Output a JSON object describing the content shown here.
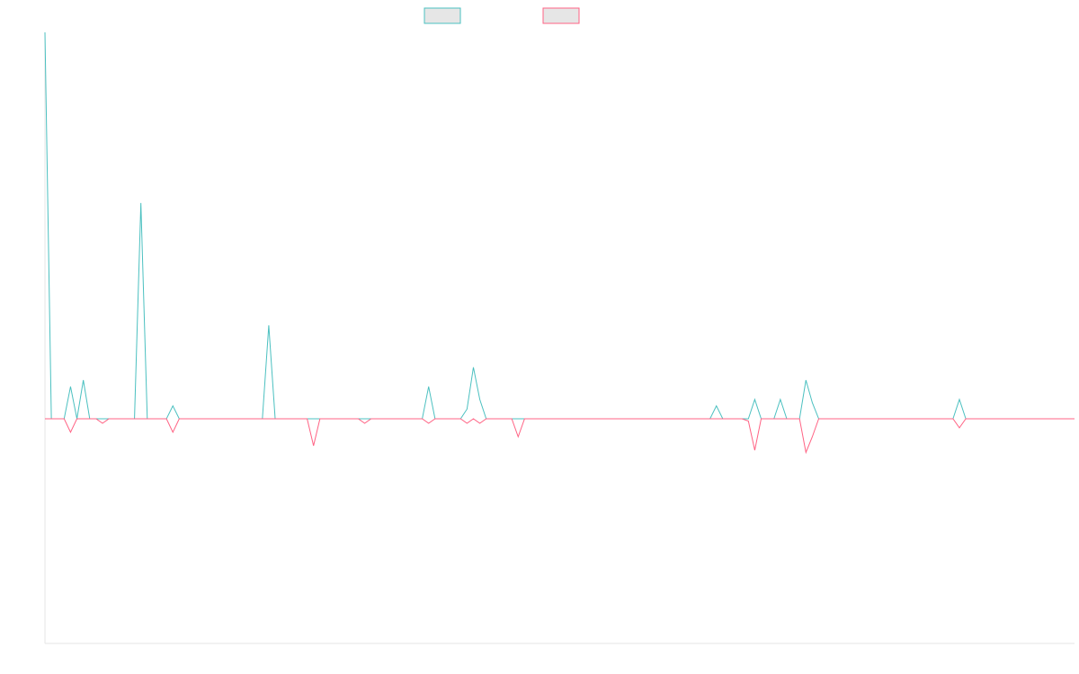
{
  "chart_data": {
    "type": "line",
    "title": "",
    "xlabel": "",
    "ylabel": "",
    "grid": false,
    "legend": {
      "placement": "top-center",
      "entries": [
        {
          "label": "",
          "color": "#4bc0c0",
          "fill": "#e6e6e6"
        },
        {
          "label": "",
          "color": "#ff6384",
          "fill": "#e6e6e6"
        }
      ]
    },
    "x_count": 162,
    "ylim": [
      -1,
      1.2
    ],
    "series": [
      {
        "color": "#4bc0c0",
        "points": [
          [
            0,
            1.2
          ],
          [
            1,
            0
          ],
          [
            3,
            0
          ],
          [
            4,
            0.1
          ],
          [
            5,
            0
          ],
          [
            6,
            0.12
          ],
          [
            7,
            0
          ],
          [
            9,
            0
          ],
          [
            10,
            0
          ],
          [
            11,
            0
          ],
          [
            12,
            0
          ],
          [
            13,
            0
          ],
          [
            14,
            0
          ],
          [
            15,
            0.67
          ],
          [
            16,
            0
          ],
          [
            17,
            0
          ],
          [
            18,
            0
          ],
          [
            19,
            0
          ],
          [
            20,
            0.04
          ],
          [
            21,
            0
          ],
          [
            22,
            0
          ],
          [
            23,
            0
          ],
          [
            24,
            0
          ],
          [
            25,
            0
          ],
          [
            26,
            0
          ],
          [
            27,
            0
          ],
          [
            28,
            0
          ],
          [
            29,
            0
          ],
          [
            30,
            0
          ],
          [
            31,
            0
          ],
          [
            32,
            0
          ],
          [
            33,
            0
          ],
          [
            34,
            0
          ],
          [
            35,
            0.29
          ],
          [
            36,
            0
          ],
          [
            37,
            0
          ],
          [
            38,
            0
          ],
          [
            39,
            0
          ],
          [
            40,
            0
          ],
          [
            41,
            0
          ],
          [
            42,
            0
          ],
          [
            43,
            0
          ],
          [
            44,
            0
          ],
          [
            45,
            0
          ],
          [
            46,
            0
          ],
          [
            47,
            0
          ],
          [
            48,
            0
          ],
          [
            49,
            0
          ],
          [
            50,
            0
          ],
          [
            51,
            0
          ],
          [
            52,
            0
          ],
          [
            53,
            0
          ],
          [
            54,
            0
          ],
          [
            55,
            0
          ],
          [
            56,
            0
          ],
          [
            57,
            0
          ],
          [
            58,
            0
          ],
          [
            59,
            0
          ],
          [
            60,
            0.1
          ],
          [
            61,
            0
          ],
          [
            62,
            0
          ],
          [
            63,
            0
          ],
          [
            64,
            0
          ],
          [
            65,
            0
          ],
          [
            66,
            0.03
          ],
          [
            67,
            0.16
          ],
          [
            68,
            0.06
          ],
          [
            69,
            0
          ],
          [
            70,
            0
          ],
          [
            71,
            0
          ],
          [
            72,
            0
          ],
          [
            73,
            0
          ],
          [
            74,
            0
          ],
          [
            75,
            0
          ],
          [
            76,
            0
          ],
          [
            77,
            0
          ],
          [
            78,
            0
          ],
          [
            79,
            0
          ],
          [
            80,
            0
          ],
          [
            81,
            0
          ],
          [
            82,
            0
          ],
          [
            83,
            0
          ],
          [
            84,
            0
          ],
          [
            85,
            0
          ],
          [
            86,
            0
          ],
          [
            87,
            0
          ],
          [
            88,
            0
          ],
          [
            89,
            0
          ],
          [
            90,
            0
          ],
          [
            91,
            0
          ],
          [
            92,
            0
          ],
          [
            93,
            0
          ],
          [
            94,
            0
          ],
          [
            95,
            0
          ],
          [
            96,
            0
          ],
          [
            97,
            0
          ],
          [
            98,
            0
          ],
          [
            99,
            0
          ],
          [
            100,
            0
          ],
          [
            101,
            0
          ],
          [
            102,
            0
          ],
          [
            103,
            0
          ],
          [
            104,
            0
          ],
          [
            105,
            0.04
          ],
          [
            106,
            0
          ],
          [
            107,
            0
          ],
          [
            108,
            0
          ],
          [
            109,
            0
          ],
          [
            110,
            0
          ],
          [
            111,
            0.06
          ],
          [
            112,
            0
          ],
          [
            113,
            0
          ],
          [
            114,
            0
          ],
          [
            115,
            0.06
          ],
          [
            116,
            0
          ],
          [
            117,
            0
          ],
          [
            118,
            0
          ],
          [
            119,
            0.12
          ],
          [
            120,
            0.05
          ],
          [
            121,
            0
          ],
          [
            122,
            0
          ],
          [
            123,
            0
          ],
          [
            124,
            0
          ],
          [
            125,
            0
          ],
          [
            126,
            0
          ],
          [
            127,
            0
          ],
          [
            128,
            0
          ],
          [
            129,
            0
          ],
          [
            130,
            0
          ],
          [
            131,
            0
          ],
          [
            132,
            0
          ],
          [
            133,
            0
          ],
          [
            134,
            0
          ],
          [
            135,
            0
          ],
          [
            136,
            0
          ],
          [
            137,
            0
          ],
          [
            138,
            0
          ],
          [
            139,
            0
          ],
          [
            140,
            0
          ],
          [
            141,
            0
          ],
          [
            142,
            0
          ],
          [
            143,
            0.06
          ],
          [
            144,
            0
          ],
          [
            145,
            0
          ],
          [
            146,
            0
          ],
          [
            147,
            0
          ],
          [
            148,
            0
          ],
          [
            149,
            0
          ],
          [
            150,
            0
          ],
          [
            151,
            0
          ],
          [
            152,
            0
          ],
          [
            153,
            0
          ],
          [
            154,
            0
          ],
          [
            155,
            0
          ],
          [
            156,
            0
          ],
          [
            157,
            0
          ],
          [
            158,
            0
          ],
          [
            159,
            0
          ],
          [
            160,
            0
          ],
          [
            161,
            0
          ]
        ]
      },
      {
        "color": "#ff6384",
        "points": [
          [
            0,
            0
          ],
          [
            1,
            0
          ],
          [
            2,
            0
          ],
          [
            3,
            0
          ],
          [
            4,
            -0.06
          ],
          [
            5,
            0
          ],
          [
            6,
            0
          ],
          [
            7,
            0
          ],
          [
            8,
            0
          ],
          [
            9,
            -0.02
          ],
          [
            10,
            0
          ],
          [
            11,
            0
          ],
          [
            12,
            0
          ],
          [
            13,
            0
          ],
          [
            14,
            0
          ],
          [
            15,
            0
          ],
          [
            16,
            0
          ],
          [
            17,
            0
          ],
          [
            18,
            0
          ],
          [
            19,
            0
          ],
          [
            20,
            -0.06
          ],
          [
            21,
            0
          ],
          [
            22,
            0
          ],
          [
            23,
            0
          ],
          [
            24,
            0
          ],
          [
            25,
            0
          ],
          [
            26,
            0
          ],
          [
            27,
            0
          ],
          [
            28,
            0
          ],
          [
            29,
            0
          ],
          [
            30,
            0
          ],
          [
            31,
            0
          ],
          [
            32,
            0
          ],
          [
            33,
            0
          ],
          [
            34,
            0
          ],
          [
            35,
            0
          ],
          [
            36,
            0
          ],
          [
            37,
            0
          ],
          [
            38,
            0
          ],
          [
            39,
            0
          ],
          [
            40,
            0
          ],
          [
            41,
            0
          ],
          [
            42,
            -0.12
          ],
          [
            43,
            0
          ],
          [
            44,
            0
          ],
          [
            45,
            0
          ],
          [
            46,
            0
          ],
          [
            47,
            0
          ],
          [
            48,
            0
          ],
          [
            49,
            0
          ],
          [
            50,
            -0.02
          ],
          [
            51,
            0
          ],
          [
            52,
            0
          ],
          [
            53,
            0
          ],
          [
            54,
            0
          ],
          [
            55,
            0
          ],
          [
            56,
            0
          ],
          [
            57,
            0
          ],
          [
            58,
            0
          ],
          [
            59,
            0
          ],
          [
            60,
            -0.02
          ],
          [
            61,
            0
          ],
          [
            62,
            0
          ],
          [
            63,
            0
          ],
          [
            64,
            0
          ],
          [
            65,
            0
          ],
          [
            66,
            -0.02
          ],
          [
            67,
            0
          ],
          [
            68,
            -0.02
          ],
          [
            69,
            0
          ],
          [
            70,
            0
          ],
          [
            71,
            0
          ],
          [
            72,
            0
          ],
          [
            73,
            0
          ],
          [
            74,
            -0.08
          ],
          [
            75,
            0
          ],
          [
            76,
            0
          ],
          [
            77,
            0
          ],
          [
            78,
            0
          ],
          [
            79,
            0
          ],
          [
            80,
            0
          ],
          [
            81,
            0
          ],
          [
            82,
            0
          ],
          [
            83,
            0
          ],
          [
            84,
            0
          ],
          [
            85,
            0
          ],
          [
            86,
            0
          ],
          [
            87,
            0
          ],
          [
            88,
            0
          ],
          [
            89,
            0
          ],
          [
            90,
            0
          ],
          [
            91,
            0
          ],
          [
            92,
            0
          ],
          [
            93,
            0
          ],
          [
            94,
            0
          ],
          [
            95,
            0
          ],
          [
            96,
            0
          ],
          [
            97,
            0
          ],
          [
            98,
            0
          ],
          [
            99,
            0
          ],
          [
            100,
            0
          ],
          [
            101,
            0
          ],
          [
            102,
            0
          ],
          [
            103,
            0
          ],
          [
            104,
            0
          ],
          [
            105,
            0
          ],
          [
            106,
            0
          ],
          [
            107,
            0
          ],
          [
            108,
            0
          ],
          [
            109,
            0
          ],
          [
            110,
            -0.01
          ],
          [
            111,
            -0.14
          ],
          [
            112,
            0
          ],
          [
            113,
            0
          ],
          [
            114,
            0
          ],
          [
            115,
            0
          ],
          [
            116,
            0
          ],
          [
            117,
            0
          ],
          [
            118,
            0
          ],
          [
            119,
            -0.15
          ],
          [
            120,
            -0.08
          ],
          [
            121,
            0
          ],
          [
            122,
            0
          ],
          [
            123,
            0
          ],
          [
            124,
            0
          ],
          [
            125,
            0
          ],
          [
            126,
            0
          ],
          [
            127,
            0
          ],
          [
            128,
            0
          ],
          [
            129,
            0
          ],
          [
            130,
            0
          ],
          [
            131,
            0
          ],
          [
            132,
            0
          ],
          [
            133,
            0
          ],
          [
            134,
            0
          ],
          [
            135,
            0
          ],
          [
            136,
            0
          ],
          [
            137,
            0
          ],
          [
            138,
            0
          ],
          [
            139,
            0
          ],
          [
            140,
            0
          ],
          [
            141,
            0
          ],
          [
            142,
            0
          ],
          [
            143,
            -0.04
          ],
          [
            144,
            0
          ],
          [
            145,
            0
          ],
          [
            146,
            0
          ],
          [
            147,
            0
          ],
          [
            148,
            0
          ],
          [
            149,
            0
          ],
          [
            150,
            0
          ],
          [
            151,
            0
          ],
          [
            152,
            0
          ],
          [
            153,
            0
          ],
          [
            154,
            0
          ],
          [
            155,
            0
          ],
          [
            156,
            0
          ],
          [
            157,
            0
          ],
          [
            158,
            0
          ],
          [
            159,
            0
          ],
          [
            160,
            0
          ],
          [
            161,
            0
          ]
        ]
      }
    ]
  }
}
